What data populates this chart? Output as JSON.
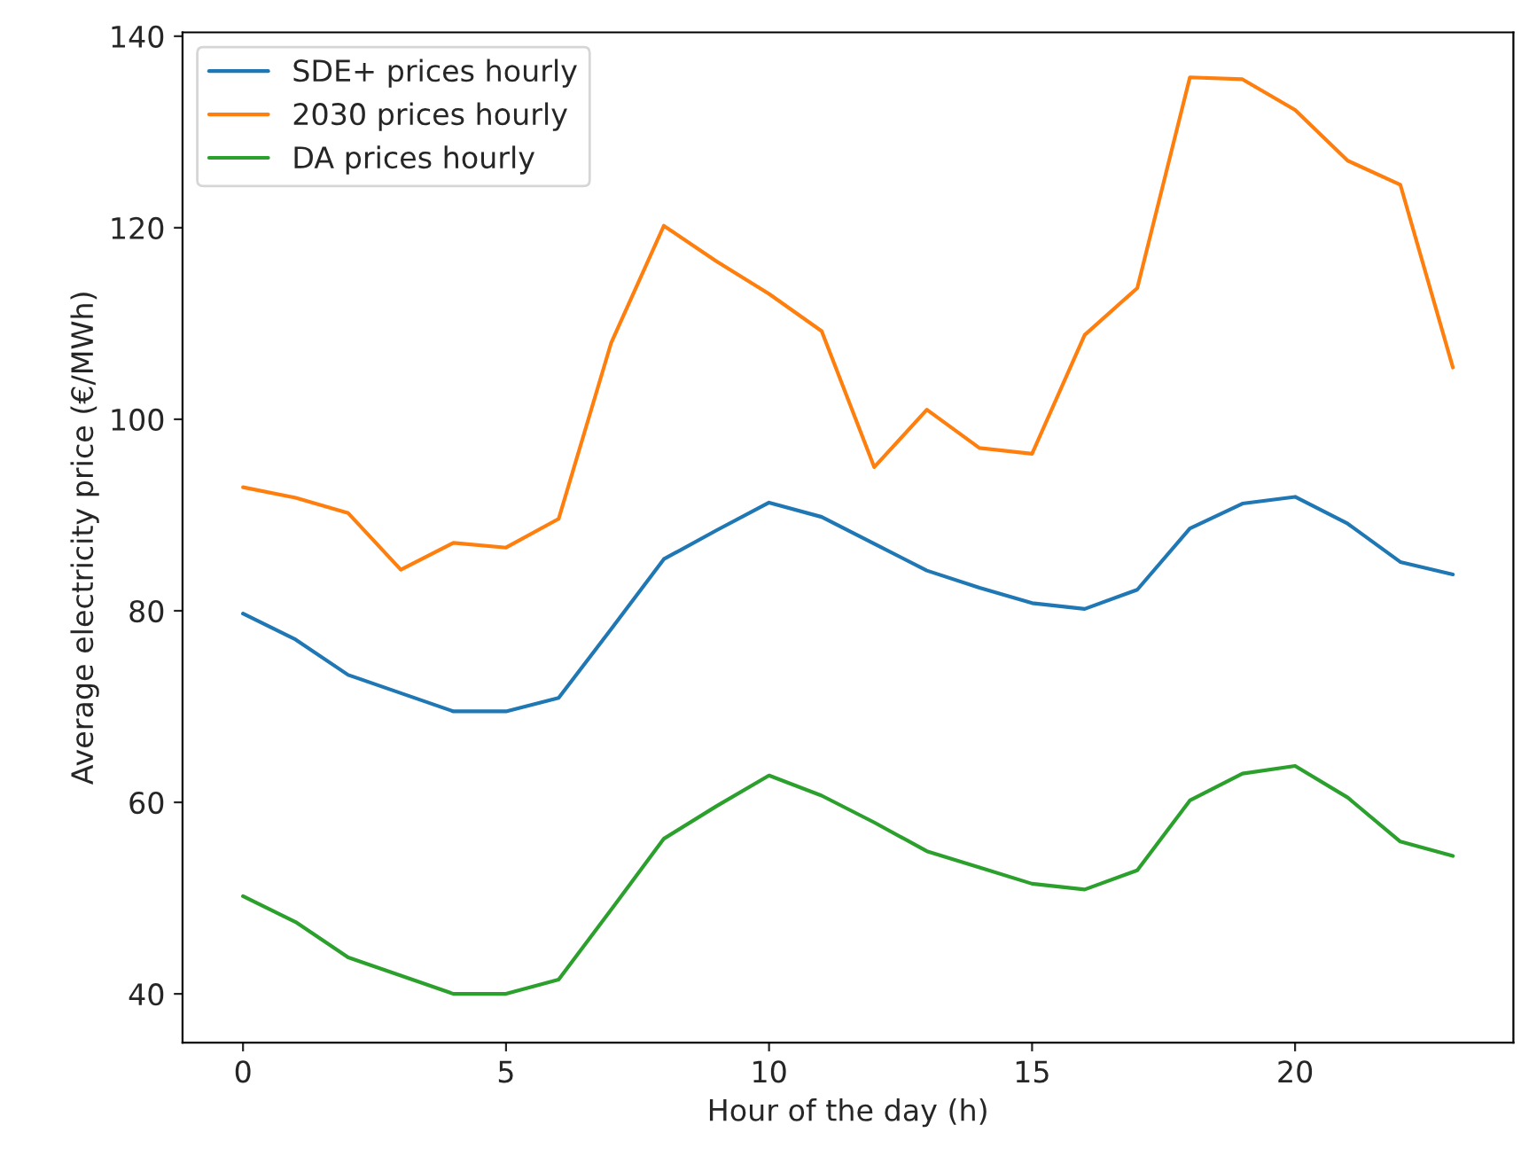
{
  "chart_data": {
    "type": "line",
    "xlabel": "Hour of the day (h)",
    "ylabel": "Average electricity price (€/MWh)",
    "x": [
      0,
      1,
      2,
      3,
      4,
      5,
      6,
      7,
      8,
      9,
      10,
      11,
      12,
      13,
      14,
      15,
      16,
      17,
      18,
      19,
      20,
      21,
      22,
      23
    ],
    "series": [
      {
        "name": "SDE+ prices hourly",
        "color": "#1f77b4",
        "values": [
          79.7,
          77.0,
          73.3,
          71.4,
          69.5,
          69.5,
          70.9,
          78.1,
          85.4,
          88.4,
          91.3,
          89.8,
          87.0,
          84.2,
          82.4,
          80.8,
          80.2,
          82.2,
          88.6,
          91.2,
          91.9,
          89.1,
          85.1,
          83.8
        ]
      },
      {
        "name": "2030 prices hourly",
        "color": "#ff7f0e",
        "values": [
          92.9,
          91.8,
          90.2,
          84.3,
          87.1,
          86.6,
          89.6,
          108.0,
          120.2,
          116.5,
          113.1,
          109.2,
          95.0,
          101.0,
          97.0,
          96.4,
          108.8,
          113.7,
          135.7,
          135.5,
          132.3,
          127.0,
          124.5,
          105.4
        ]
      },
      {
        "name": "DA prices hourly",
        "color": "#2ca02c",
        "values": [
          50.2,
          47.5,
          43.8,
          41.9,
          40.0,
          40.0,
          41.5,
          48.8,
          56.2,
          59.6,
          62.8,
          60.7,
          57.9,
          54.9,
          53.2,
          51.5,
          50.9,
          52.9,
          60.2,
          63.0,
          63.8,
          60.5,
          55.9,
          54.4
        ]
      }
    ],
    "xlim": [
      -1.15,
      24.15
    ],
    "ylim": [
      34.9,
      140.4
    ],
    "xticks": [
      0,
      5,
      10,
      15,
      20
    ],
    "yticks": [
      40,
      60,
      80,
      100,
      120,
      140
    ],
    "legend": "top left",
    "grid": false,
    "marker": "none",
    "line_style": "solid"
  }
}
